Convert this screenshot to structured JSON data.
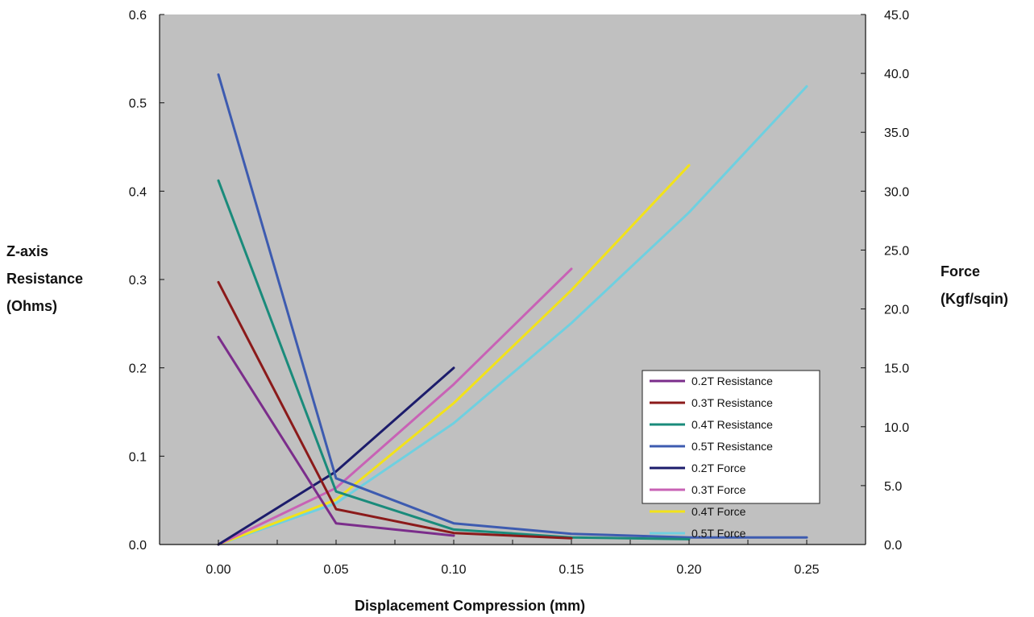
{
  "chart_data": {
    "type": "line",
    "title": "",
    "xlabel": "Displacement Compression (mm)",
    "ylabel_left": [
      "Z-axis",
      "Resistance",
      "(Ohms)"
    ],
    "ylabel_right": [
      "Force",
      "(Kgf/sqin)"
    ],
    "xlim": [
      -0.025,
      0.275
    ],
    "ylim_left": [
      0,
      0.6
    ],
    "ylim_right": [
      0,
      45
    ],
    "x_ticks": [
      "0.00",
      "0.05",
      "0.10",
      "0.15",
      "0.20",
      "0.25"
    ],
    "y_left_ticks": [
      "0.0",
      "0.1",
      "0.2",
      "0.3",
      "0.4",
      "0.5",
      "0.6"
    ],
    "y_right_ticks": [
      "0.0",
      "5.0",
      "10.0",
      "15.0",
      "20.0",
      "25.0",
      "30.0",
      "35.0",
      "40.0",
      "45.0"
    ],
    "background": "#c0c0c0",
    "grid": false,
    "legend_position": "center-right",
    "series": [
      {
        "name": "0.2T Resistance",
        "axis": "left",
        "color": "#7b2d8b",
        "points": [
          [
            0,
            0.235
          ],
          [
            0.05,
            0.024
          ],
          [
            0.1,
            0.01
          ]
        ]
      },
      {
        "name": "0.3T Resistance",
        "axis": "left",
        "color": "#8b1a1a",
        "points": [
          [
            0,
            0.297
          ],
          [
            0.05,
            0.04
          ],
          [
            0.1,
            0.013
          ],
          [
            0.15,
            0.007
          ]
        ]
      },
      {
        "name": "0.4T Resistance",
        "axis": "left",
        "color": "#1a8b7b",
        "points": [
          [
            0,
            0.412
          ],
          [
            0.05,
            0.06
          ],
          [
            0.1,
            0.017
          ],
          [
            0.15,
            0.008
          ],
          [
            0.2,
            0.006
          ]
        ]
      },
      {
        "name": "0.5T Resistance",
        "axis": "left",
        "color": "#3d5bb0",
        "points": [
          [
            0,
            0.532
          ],
          [
            0.05,
            0.075
          ],
          [
            0.1,
            0.024
          ],
          [
            0.15,
            0.012
          ],
          [
            0.2,
            0.008
          ],
          [
            0.25,
            0.008
          ]
        ]
      },
      {
        "name": "0.2T Force",
        "axis": "right",
        "color": "#1c1c6b",
        "points": [
          [
            0,
            0
          ],
          [
            0.05,
            6.2
          ],
          [
            0.1,
            15.0
          ]
        ]
      },
      {
        "name": "0.3T Force",
        "axis": "right",
        "color": "#c862b5",
        "points": [
          [
            0,
            0
          ],
          [
            0.05,
            4.8
          ],
          [
            0.1,
            13.6
          ],
          [
            0.15,
            23.4
          ]
        ]
      },
      {
        "name": "0.4T Force",
        "axis": "right",
        "color": "#f2e21a",
        "points": [
          [
            0,
            0
          ],
          [
            0.05,
            3.8
          ],
          [
            0.1,
            12.0
          ],
          [
            0.15,
            21.6
          ],
          [
            0.2,
            32.2
          ]
        ]
      },
      {
        "name": "0.5T Force",
        "axis": "right",
        "color": "#6fd0e0",
        "points": [
          [
            0,
            0
          ],
          [
            0.05,
            3.5
          ],
          [
            0.1,
            10.3
          ],
          [
            0.15,
            18.8
          ],
          [
            0.2,
            28.2
          ],
          [
            0.25,
            38.9
          ]
        ]
      }
    ]
  }
}
